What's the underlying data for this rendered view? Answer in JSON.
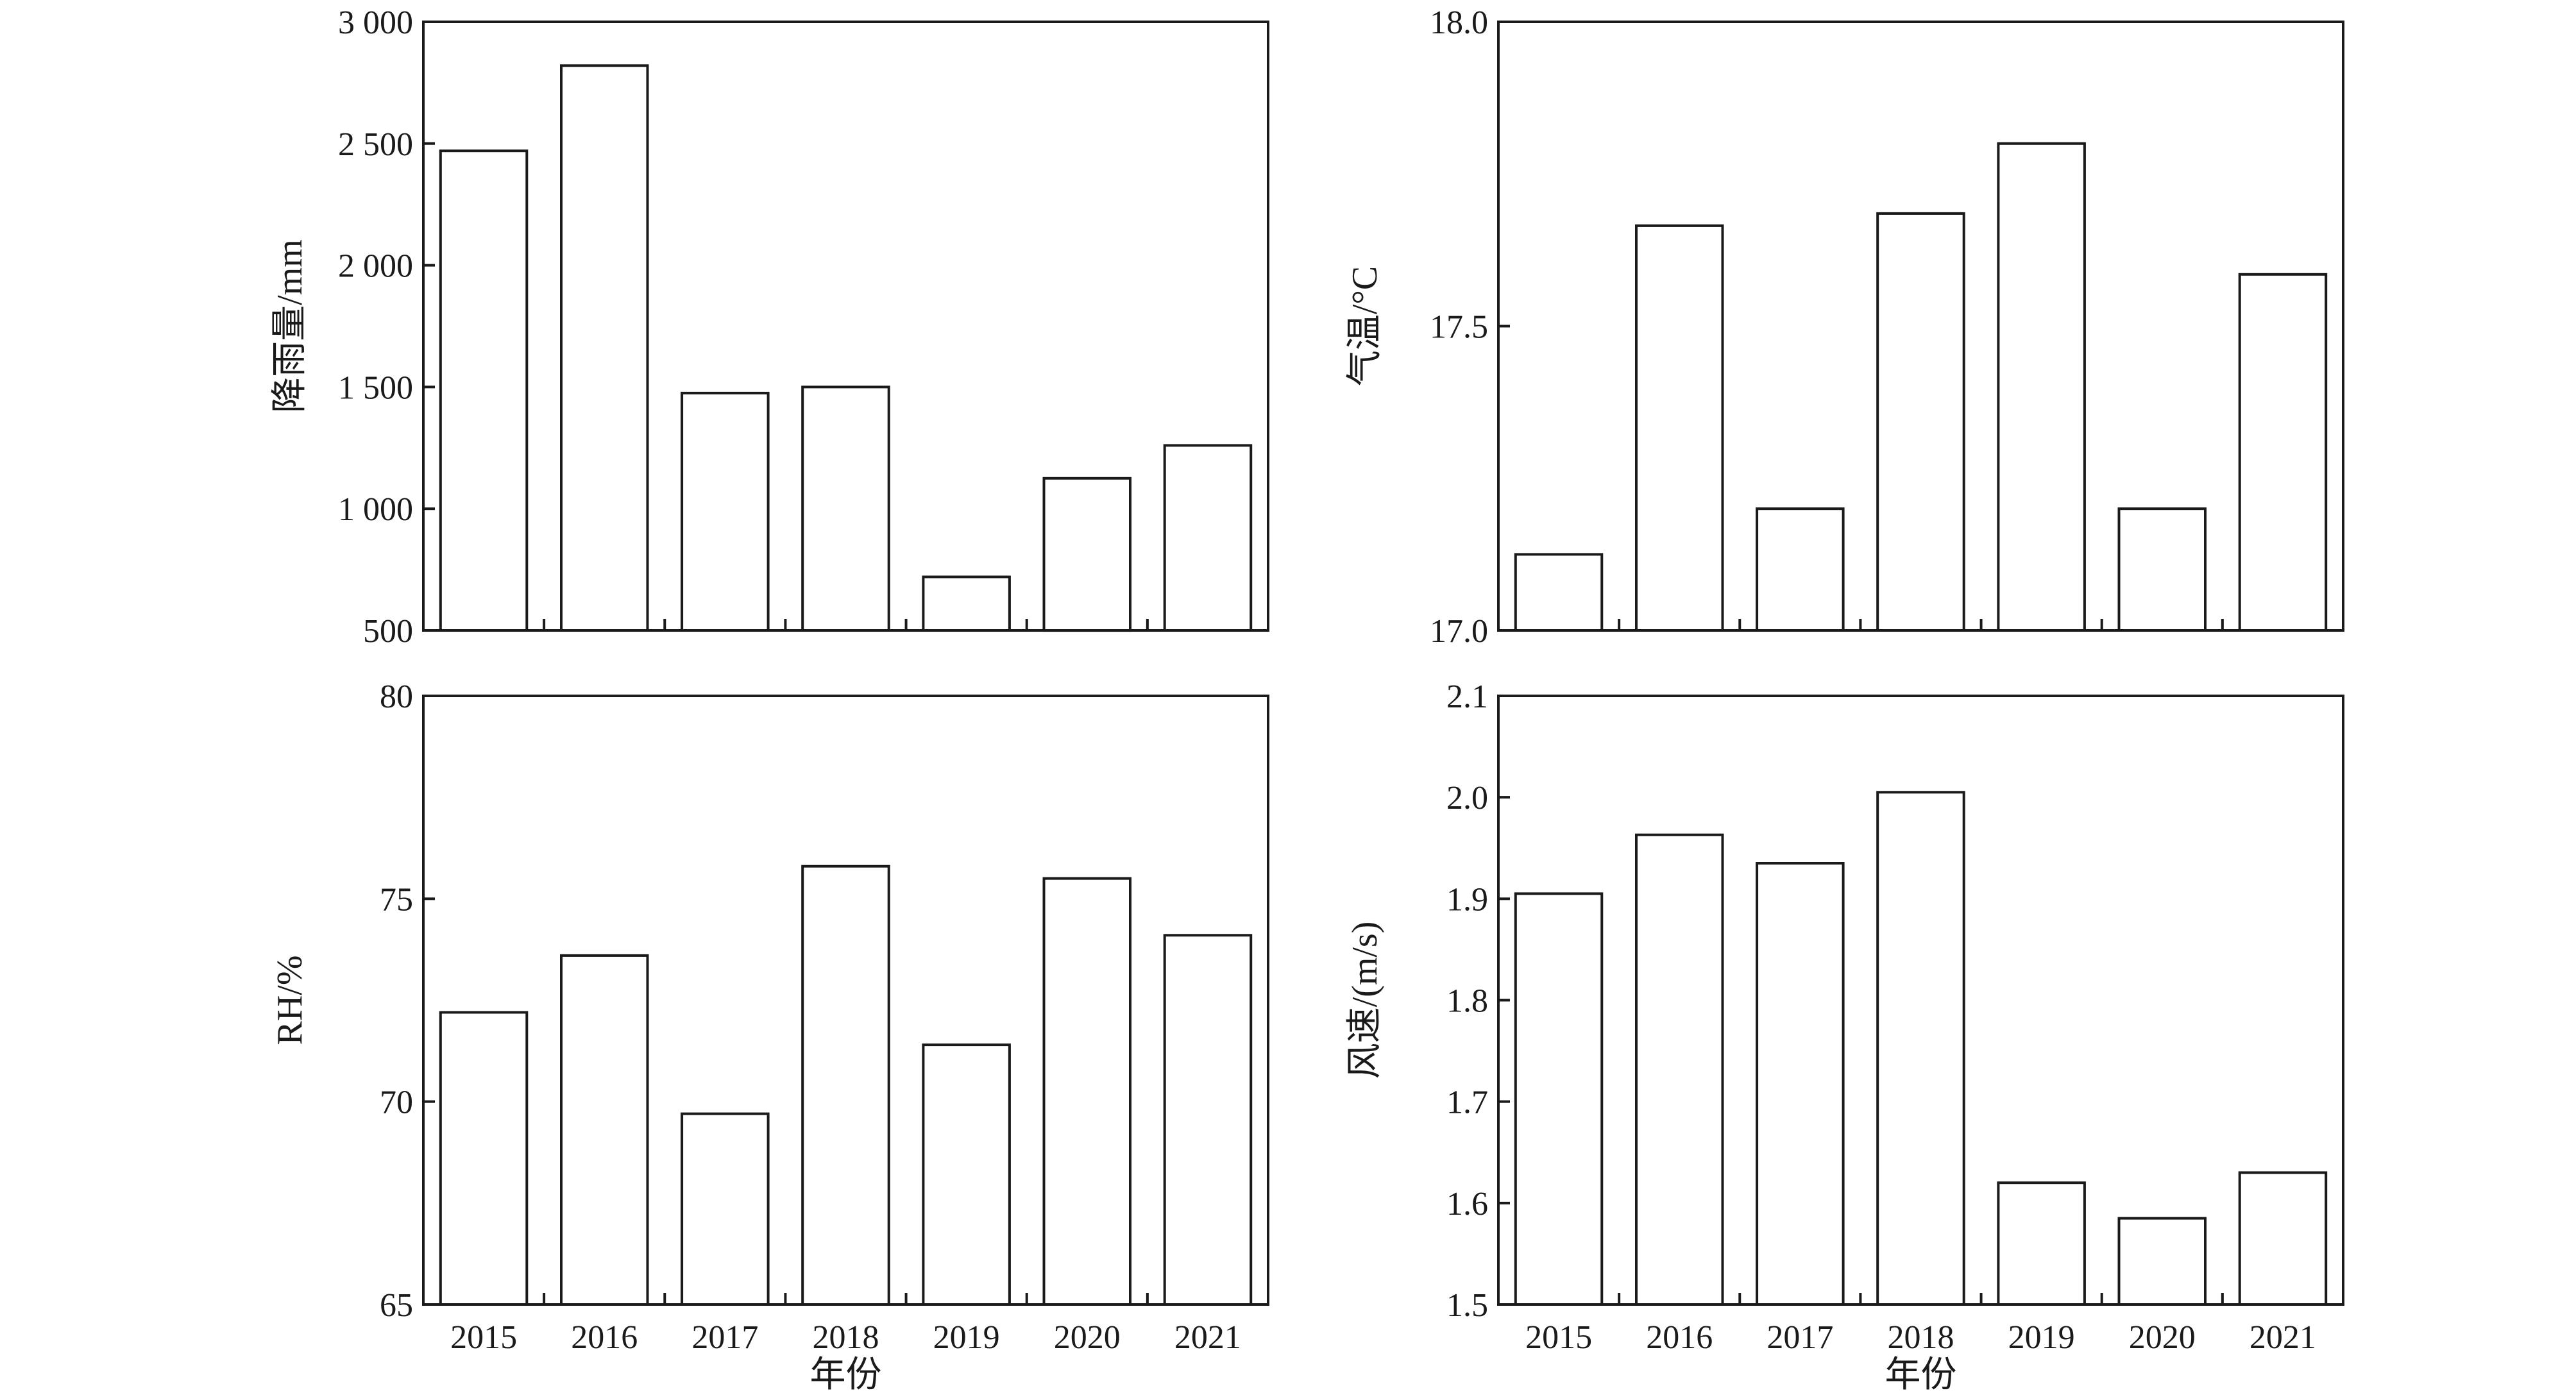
{
  "chart_data": [
    {
      "type": "bar",
      "categories": [
        "2015",
        "2016",
        "2017",
        "2018",
        "2019",
        "2020",
        "2021"
      ],
      "values": [
        2470,
        2820,
        1475,
        1500,
        720,
        1125,
        1260
      ],
      "ylabel": "降雨量/mm",
      "xlabel": "",
      "ylim": [
        500,
        3000
      ],
      "yticks": [
        500,
        1000,
        1500,
        2000,
        2500,
        3000
      ],
      "ytick_labels": [
        "500",
        "1 000",
        "1 500",
        "2 000",
        "2 500",
        "3 000"
      ],
      "show_xtick_labels": false,
      "grid": false
    },
    {
      "type": "bar",
      "categories": [
        "2015",
        "2016",
        "2017",
        "2018",
        "2019",
        "2020",
        "2021"
      ],
      "values": [
        17.125,
        17.665,
        17.2,
        17.685,
        17.8,
        17.2,
        17.585
      ],
      "ylabel": "气温/°C",
      "xlabel": "",
      "ylim": [
        17.0,
        18.0
      ],
      "yticks": [
        17.0,
        17.5,
        18.0
      ],
      "ytick_labels": [
        "17.0",
        "17.5",
        "18.0"
      ],
      "show_xtick_labels": false,
      "grid": false
    },
    {
      "type": "bar",
      "categories": [
        "2015",
        "2016",
        "2017",
        "2018",
        "2019",
        "2020",
        "2021"
      ],
      "values": [
        72.2,
        73.6,
        69.7,
        75.8,
        71.4,
        75.5,
        74.1
      ],
      "ylabel": "RH/%",
      "xlabel": "年份",
      "ylim": [
        65,
        80
      ],
      "yticks": [
        65,
        70,
        75,
        80
      ],
      "ytick_labels": [
        "65",
        "70",
        "75",
        "80"
      ],
      "show_xtick_labels": true,
      "grid": false
    },
    {
      "type": "bar",
      "categories": [
        "2015",
        "2016",
        "2017",
        "2018",
        "2019",
        "2020",
        "2021"
      ],
      "values": [
        1.905,
        1.963,
        1.935,
        2.005,
        1.62,
        1.585,
        1.63
      ],
      "ylabel": "风速/(m/s)",
      "xlabel": "年份",
      "ylim": [
        1.5,
        2.1
      ],
      "yticks": [
        1.5,
        1.6,
        1.7,
        1.8,
        1.9,
        2.0,
        2.1
      ],
      "ytick_labels": [
        "1.5",
        "1.6",
        "1.7",
        "1.8",
        "1.9",
        "2.0",
        "2.1"
      ],
      "show_xtick_labels": true,
      "grid": false
    }
  ]
}
